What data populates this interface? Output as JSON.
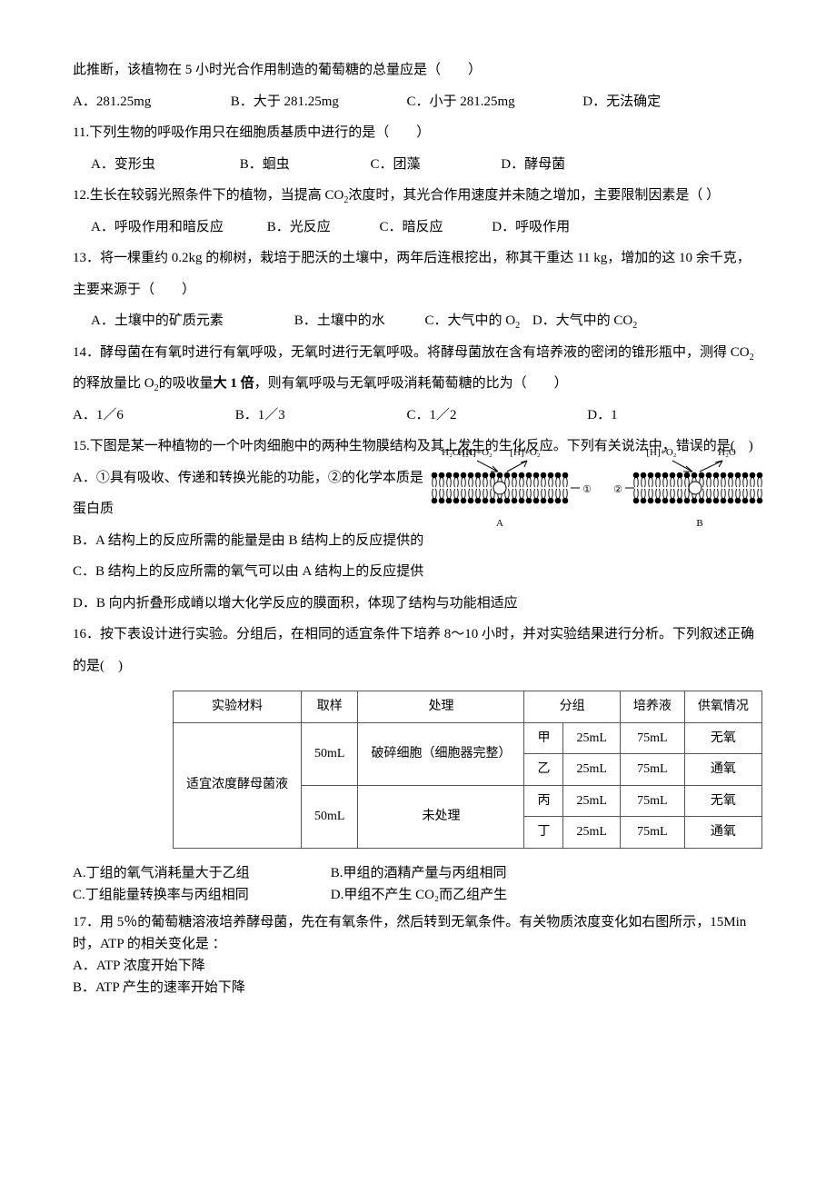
{
  "q10_cont": {
    "preface": "此推断，该植物在 5 小时光合作用制造的葡萄糖的总量应是（　　）",
    "a": "A．281.25mg",
    "b": "B．大于 281.25mg",
    "c": "C．小于 281.25mg",
    "d": "D．无法确定"
  },
  "q11": {
    "stem": "11.下列生物的呼吸作用只在细胞质基质中进行的是（　　）",
    "a": "A．变形虫",
    "b": "B．蛔虫",
    "c": "C．团藻",
    "d": "D．酵母菌"
  },
  "q12": {
    "stem_1": "12.生长在较弱光照条件下的植物，当提高 CO",
    "stem_sub": "2",
    "stem_2": "浓度时，其光合作用速度并未随之增加，主要限制因素是（ ）",
    "a": "A．呼吸作用和暗反应",
    "b": "B．光反应",
    "c": "C．暗反应",
    "d": "D．呼吸作用"
  },
  "q13": {
    "stem": "13．将一棵重约 0.2kg 的柳树，栽培于肥沃的土壤中，两年后连根挖出，称其干重达 11 kg，增加的这 10 余千克，主要来源于（　　）",
    "a": "A．土壤中的矿质元素",
    "b": "B．土壤中的水",
    "c_1": "C．大气中的 O",
    "c_sub": "2",
    "d_1": "D．大气中的 CO",
    "d_sub": "2"
  },
  "q14": {
    "stem_1": "14．酵母菌在有氧时进行有氧呼吸，无氧时进行无氧呼吸。将酵母菌放在含有培养液的密闭的锥形瓶中，测得 CO",
    "sub1": "2",
    "stem_2": "的释放量比 O",
    "sub2": "2",
    "stem_3": "的吸收量",
    "bold": "大 1 倍",
    "stem_4": "，则有氧呼吸与无氧呼吸消耗葡萄糖的比为（　　）",
    "a": "A．1／6",
    "b": "B．1／3",
    "c": "C．1／2",
    "d": "D．1"
  },
  "q15": {
    "stem": "15.下图是某一种植物的一个叶肉细胞中的两种生物膜结构及其上发生的生化反应。下列有关说法中，错误的是(　)",
    "a": "A．①具有吸收、传递和转换光能的功能，②的化学本质是蛋白质",
    "b": "B．A 结构上的反应所需的能量是由 B 结构上的反应提供的",
    "c": "C．B 结构上的反应所需的氧气可以由 A 结构上的反应提供",
    "d": "D．B 向内折叠形成嵴以增大化学反应的膜面积，体现了结构与功能相适应",
    "diagram": {
      "labelA_top": "H₂O  [H]+O₂",
      "labelB_top": "[H]+O₂ H₂O",
      "labelA_bot": "A",
      "labelB_bot": "B",
      "circle1": "①",
      "circle2": "②"
    }
  },
  "q16": {
    "stem": "16．按下表设计进行实验。分组后，在相同的适宜条件下培养 8～10 小时，并对实验结果进行分析。下列叙述正确的是(　)",
    "table": {
      "header": [
        "实验材料",
        "取样",
        "处理",
        "分组",
        "",
        "培养液",
        "供氧情况"
      ],
      "material": "适宜浓度酵母菌液",
      "sample": "50mL",
      "proc1": "破碎细胞（细胞器完整）",
      "proc2": "未处理",
      "r1": [
        "甲",
        "25mL",
        "75mL",
        "无氧"
      ],
      "r2": [
        "乙",
        "25mL",
        "75mL",
        "通氧"
      ],
      "r3": [
        "丙",
        "25mL",
        "75mL",
        "无氧"
      ],
      "r4": [
        "丁",
        "25mL",
        "75mL",
        "通氧"
      ]
    },
    "a": "A.丁组的氧气消耗量大于乙组",
    "b": "B.甲组的酒精产量与丙组相同",
    "c": "C.丁组能量转换率与丙组相同",
    "d": "D.甲组不产生 CO₂而乙组产生"
  },
  "q17": {
    "stem": "17．用 5％的葡萄糖溶液培养酵母菌，先在有氧条件，然后转到无氧条件。有关物质浓度变化如右图所示，15Min 时，ATP 的相关变化是 ：",
    "a": "A．ATP 浓度开始下降",
    "b": "B．ATP 产生的速率开始下降"
  }
}
